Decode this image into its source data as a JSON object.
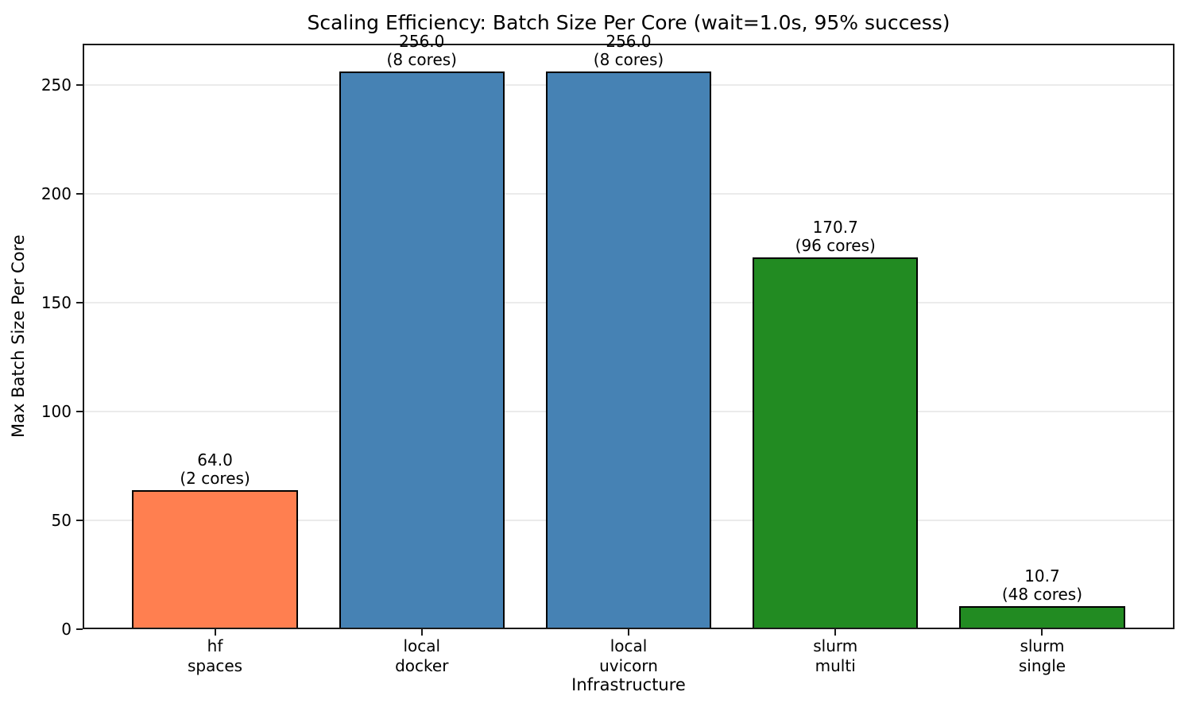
{
  "chart_data": {
    "type": "bar",
    "title": "Scaling Efficiency: Batch Size Per Core (wait=1.0s, 95% success)",
    "xlabel": "Infrastructure",
    "ylabel": "Max Batch Size Per Core",
    "ylim": [
      0,
      268.8
    ],
    "yticks": [
      0,
      50,
      100,
      150,
      200,
      250
    ],
    "grid": "horizontal",
    "grid_color": "#ebebeb",
    "edge_color": "#000000",
    "bar_width_fraction": 0.8,
    "categories": [
      "hf spaces",
      "local docker",
      "local uvicorn",
      "slurm multi",
      "slurm single"
    ],
    "values": [
      64.0,
      256.0,
      256.0,
      170.7,
      10.7
    ],
    "bars": [
      {
        "id": "hf-spaces",
        "tick_lines": [
          "hf",
          "spaces"
        ],
        "value": 64.0,
        "value_label": "64.0",
        "cores_label": "(2 cores)",
        "color": "#ff7f50"
      },
      {
        "id": "local-docker",
        "tick_lines": [
          "local",
          "docker"
        ],
        "value": 256.0,
        "value_label": "256.0",
        "cores_label": "(8 cores)",
        "color": "#4682b4"
      },
      {
        "id": "local-uvicorn",
        "tick_lines": [
          "local",
          "uvicorn"
        ],
        "value": 256.0,
        "value_label": "256.0",
        "cores_label": "(8 cores)",
        "color": "#4682b4"
      },
      {
        "id": "slurm-multi",
        "tick_lines": [
          "slurm",
          "multi"
        ],
        "value": 170.7,
        "value_label": "170.7",
        "cores_label": "(96 cores)",
        "color": "#228b22"
      },
      {
        "id": "slurm-single",
        "tick_lines": [
          "slurm",
          "single"
        ],
        "value": 10.7,
        "value_label": "10.7",
        "cores_label": "(48 cores)",
        "color": "#228b22"
      }
    ]
  }
}
